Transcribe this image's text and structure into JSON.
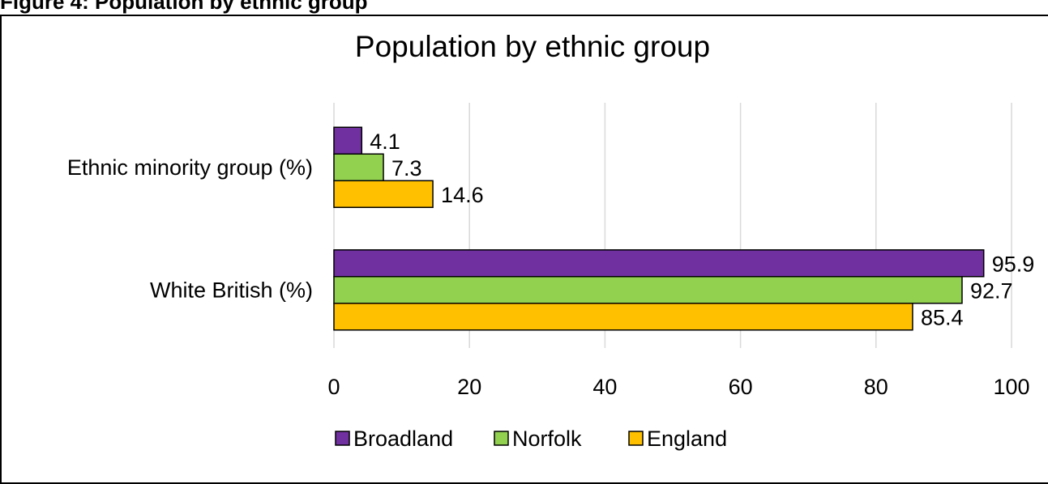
{
  "figure_caption": "Figure 4: Population by ethnic group",
  "chart_data": {
    "type": "bar",
    "orientation": "horizontal",
    "title": "Population by ethnic group",
    "categories": [
      "Ethnic minority group (%)",
      "White British (%)"
    ],
    "series": [
      {
        "name": "Broadland",
        "values": [
          4.1,
          95.9
        ],
        "color": "#7030A0"
      },
      {
        "name": "Norfolk",
        "values": [
          7.3,
          92.7
        ],
        "color": "#92D050"
      },
      {
        "name": "England",
        "values": [
          14.6,
          85.4
        ],
        "color": "#FFC000"
      }
    ],
    "xlim": [
      0,
      100
    ],
    "xticks": [
      "0",
      "20",
      "40",
      "60",
      "80",
      "100"
    ],
    "value_labels": [
      [
        "4.1",
        "95.9"
      ],
      [
        "7.3",
        "92.7"
      ],
      [
        "14.6",
        "85.4"
      ]
    ],
    "grid": "vertical",
    "legend_position": "bottom"
  }
}
